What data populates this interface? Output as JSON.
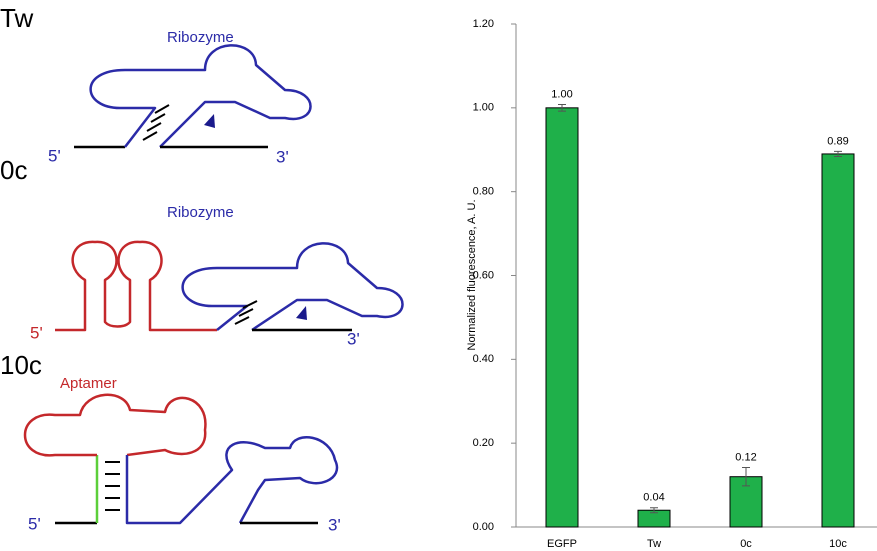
{
  "diagram": {
    "constructs": [
      {
        "label": "Tw",
        "regions": [
          "Ribozyme"
        ],
        "ends": [
          "5'",
          "3'"
        ]
      },
      {
        "label": "0c",
        "regions": [
          "Ribozyme"
        ],
        "ends": [
          "5'",
          "3'"
        ]
      },
      {
        "label": "10c",
        "regions": [
          "Aptamer"
        ],
        "ends": [
          "5'",
          "3'"
        ]
      }
    ]
  },
  "chart_data": {
    "type": "bar",
    "y_label": "Normalized fluorescence, A. U.",
    "categories": [
      "EGFP",
      "Tw",
      "0c",
      "10c"
    ],
    "values": [
      1.0,
      0.04,
      0.12,
      0.89
    ],
    "value_labels": [
      "1.00",
      "0.04",
      "0.12",
      "0.89"
    ],
    "errors": [
      0.008,
      0.006,
      0.022,
      0.006
    ],
    "color": "#1fb04a",
    "ylim": [
      0,
      1.2
    ],
    "yticks": [
      {
        "value": 0,
        "label": "0.00"
      },
      {
        "value": 0.2,
        "label": "0.20"
      },
      {
        "value": 0.4,
        "label": "0.40"
      },
      {
        "value": 0.6,
        "label": "0.60"
      },
      {
        "value": 0.8,
        "label": "0.80"
      },
      {
        "value": 1.0,
        "label": "1.00"
      },
      {
        "value": 1.2,
        "label": "1.20"
      }
    ],
    "grid": false
  }
}
